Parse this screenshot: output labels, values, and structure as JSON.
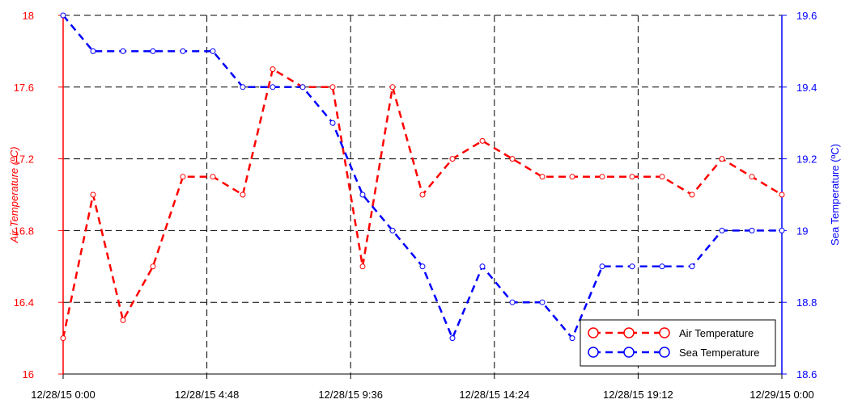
{
  "chart_data": {
    "type": "line",
    "x_tick_labels": [
      "12/28/15 0:00",
      "12/28/15 4:48",
      "12/28/15 9:36",
      "12/28/15 14:24",
      "12/28/15 19:12",
      "12/29/15 0:00"
    ],
    "x_range_hours": [
      0,
      24
    ],
    "left_axis": {
      "label": "Air Temperature (ºC)",
      "range": [
        16,
        18
      ],
      "ticks": [
        "16",
        "16.4",
        "16.8",
        "17.2",
        "17.6",
        "18"
      ],
      "color": "#ff0000"
    },
    "right_axis": {
      "label": "Sea Temperature (ºC)",
      "range": [
        18.6,
        19.6
      ],
      "ticks": [
        "18.6",
        "18.8",
        "19",
        "19.2",
        "19.4",
        "19.6"
      ],
      "color": "#0000ff"
    },
    "grid": true,
    "legend_position": "bottom-right",
    "series": [
      {
        "name": "Air Temperature",
        "axis": "left",
        "color": "#ff0000",
        "x": [
          0,
          1,
          2,
          3,
          4,
          5,
          6,
          7,
          8,
          9,
          10,
          11,
          12,
          13,
          14,
          15,
          16,
          17,
          18,
          19,
          20,
          21,
          22,
          23,
          24
        ],
        "y": [
          16.2,
          17.0,
          16.3,
          16.6,
          17.1,
          17.1,
          17.0,
          17.7,
          17.6,
          17.6,
          16.6,
          17.6,
          17.0,
          17.2,
          17.3,
          17.2,
          17.1,
          17.1,
          17.1,
          17.1,
          17.1,
          17.0,
          17.2,
          17.1,
          17.0
        ]
      },
      {
        "name": "Sea Temperature",
        "axis": "right",
        "color": "#0000ff",
        "x": [
          0,
          1,
          2,
          3,
          4,
          5,
          6,
          7,
          8,
          9,
          10,
          11,
          12,
          13,
          14,
          15,
          16,
          17,
          18,
          19,
          20,
          21,
          22,
          23,
          24
        ],
        "y": [
          19.6,
          19.5,
          19.5,
          19.5,
          19.5,
          19.5,
          19.4,
          19.4,
          19.4,
          19.3,
          19.1,
          19.0,
          18.9,
          18.7,
          18.9,
          18.8,
          18.8,
          18.7,
          18.9,
          18.9,
          18.9,
          18.9,
          19.0,
          19.0,
          19.0
        ]
      }
    ]
  }
}
